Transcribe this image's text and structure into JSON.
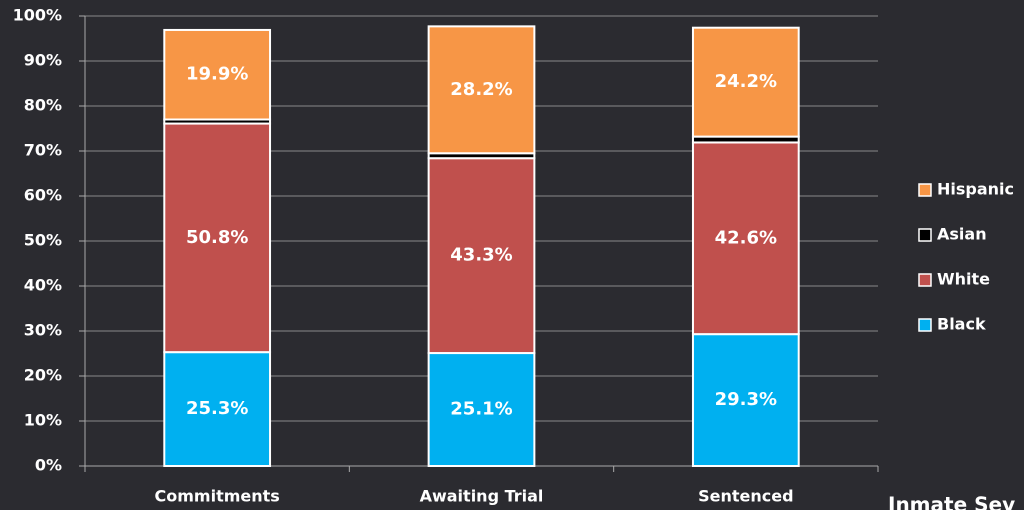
{
  "chart_data": {
    "type": "stacked_bar",
    "categories": [
      "Commitments",
      "Awaiting Trial",
      "Sentenced"
    ],
    "series": [
      {
        "name": "Black",
        "color": "#00b0f0",
        "values": [
          25.3,
          25.1,
          29.3
        ],
        "value_labels": [
          "25.3%",
          "25.1%",
          "29.3%"
        ]
      },
      {
        "name": "White",
        "color": "#c0504d",
        "values": [
          50.8,
          43.3,
          42.6
        ],
        "value_labels": [
          "50.8%",
          "43.3%",
          "42.6%"
        ]
      },
      {
        "name": "Asian",
        "color": "#000000",
        "values": [
          0.9,
          1.1,
          1.3
        ]
      },
      {
        "name": "Hispanic",
        "color": "#f79646",
        "values": [
          19.9,
          28.2,
          24.2
        ],
        "value_labels": [
          "19.9%",
          "28.2%",
          "24.2%"
        ]
      }
    ],
    "ylim": [
      0,
      100
    ],
    "yticks": [
      {
        "value": 0,
        "label": "0%"
      },
      {
        "value": 10,
        "label": "10%"
      },
      {
        "value": 20,
        "label": "20%"
      },
      {
        "value": 30,
        "label": "30%"
      },
      {
        "value": 40,
        "label": "40%"
      },
      {
        "value": 50,
        "label": "50%"
      },
      {
        "value": 60,
        "label": "60%"
      },
      {
        "value": 70,
        "label": "70%"
      },
      {
        "value": 80,
        "label": "80%"
      },
      {
        "value": 90,
        "label": "90%"
      },
      {
        "value": 100,
        "label": "100%"
      }
    ],
    "grid": true,
    "legend": "right",
    "annotation": "Inmate Sev"
  }
}
